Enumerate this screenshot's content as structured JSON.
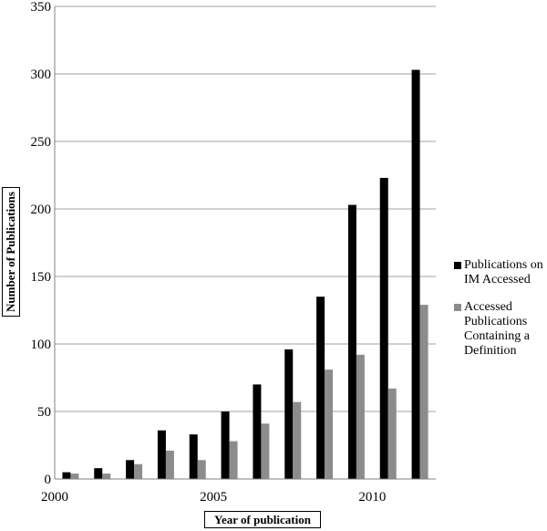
{
  "chart_data": {
    "type": "bar",
    "x": [
      2000,
      2001,
      2002,
      2003,
      2004,
      2005,
      2006,
      2007,
      2008,
      2009,
      2010,
      2011
    ],
    "series": [
      {
        "name": "Publications on IM Accessed",
        "color": "#000000",
        "values": [
          5,
          8,
          14,
          36,
          33,
          50,
          70,
          96,
          135,
          203,
          223,
          303
        ]
      },
      {
        "name": "Accessed Publications Containing a Definition",
        "color": "#8c8c8c",
        "values": [
          4,
          4,
          11,
          21,
          14,
          28,
          41,
          57,
          81,
          92,
          67,
          129
        ]
      }
    ],
    "x_ticks": [
      "2000",
      "2005",
      "2010"
    ],
    "y_ticks": [
      "0",
      "50",
      "100",
      "150",
      "200",
      "250",
      "300",
      "350"
    ],
    "ylim": [
      0,
      350
    ],
    "xlabel": "Year of publication",
    "ylabel": "Number of Publications",
    "legend_position": "right",
    "grid": true
  },
  "legend": {
    "series_0": "Publications on IM Accessed",
    "series_1": "Accessed Publications Containing a Definition"
  }
}
